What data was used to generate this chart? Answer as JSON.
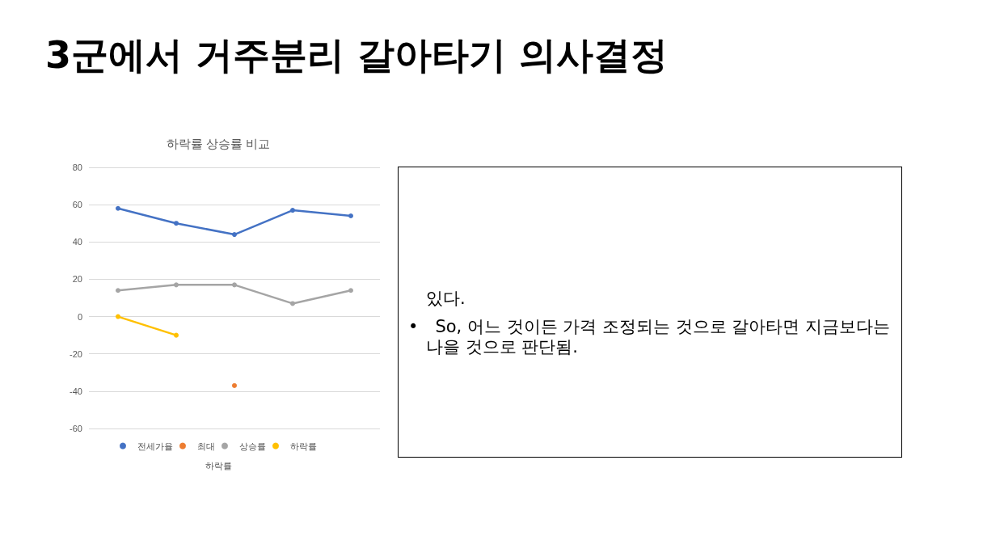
{
  "chart_data": {
    "type": "line",
    "title": "3군에서 거주분리 갈아타기 의사결정",
    "subtitle": "하락률 상승률 비교",
    "xlabel": "하락률",
    "categories": [
      null,
      null,
      null,
      null,
      null
    ],
    "series": [
      {
        "name": "전세가율",
        "color": "#4472c4",
        "values": [
          58,
          50,
          44,
          57,
          54
        ]
      },
      {
        "name": "최대",
        "color": "#ed7d31",
        "values": [
          null,
          null,
          -37,
          null,
          null
        ]
      },
      {
        "name": "상승률",
        "color": "#a5a5a5",
        "values": [
          14,
          17,
          17,
          7,
          14
        ]
      },
      {
        "name": "하락률",
        "color": "#ffc000",
        "values": [
          0,
          -10,
          null,
          null,
          null
        ]
      }
    ],
    "ylim": [
      -60,
      80
    ],
    "yticks": [
      -60,
      -40,
      -20,
      0,
      20,
      40,
      60,
      80
    ],
    "grid": "y",
    "legend": "bottom",
    "marker": "circle",
    "line_style": "solid",
    "annotations": [
      "있다.",
      "• So, 어느 것이든 가격 조정되는 것으로 갈아타면 지금보다는 나을 것으로 판단됨."
    ]
  }
}
